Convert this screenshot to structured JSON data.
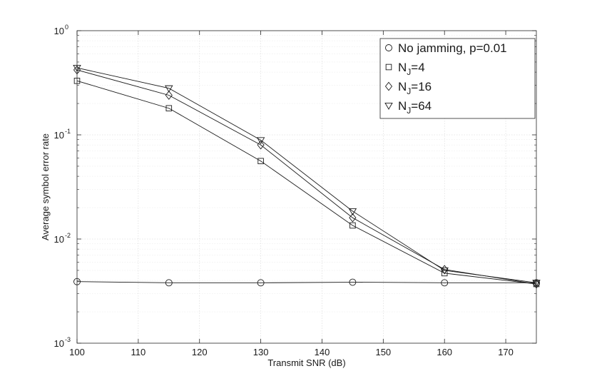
{
  "chart_data": {
    "type": "line",
    "xlabel": "Transmit SNR (dB)",
    "ylabel": "Average symbol error rate",
    "xlim": [
      100,
      175
    ],
    "ylim": [
      0.001,
      1
    ],
    "yscale": "log",
    "grid": true,
    "x_ticks": [
      100,
      110,
      120,
      130,
      140,
      150,
      160,
      170
    ],
    "y_ticks": [
      {
        "value": 0.001,
        "base": "10",
        "exp": "-3"
      },
      {
        "value": 0.01,
        "base": "10",
        "exp": "-2"
      },
      {
        "value": 0.1,
        "base": "10",
        "exp": "-1"
      },
      {
        "value": 1,
        "base": "10",
        "exp": "0"
      }
    ],
    "legend_position": "top-right",
    "x": [
      100,
      115,
      130,
      145,
      160,
      175
    ],
    "series": [
      {
        "legend_main": "No jamming, p=0.01",
        "legend_sub": "",
        "legend_tail": "",
        "marker": "circle",
        "values": [
          0.0039,
          0.0038,
          0.0038,
          0.00385,
          0.0038,
          0.0038
        ]
      },
      {
        "legend_main": "N",
        "legend_sub": "J",
        "legend_tail": "=4",
        "marker": "square",
        "values": [
          0.33,
          0.18,
          0.056,
          0.0135,
          0.0047,
          0.0037
        ]
      },
      {
        "legend_main": "N",
        "legend_sub": "J",
        "legend_tail": "=16",
        "marker": "diamond",
        "values": [
          0.42,
          0.24,
          0.08,
          0.016,
          0.0051,
          0.0037
        ]
      },
      {
        "legend_main": "N",
        "legend_sub": "J",
        "legend_tail": "=64",
        "marker": "triangle-down",
        "values": [
          0.44,
          0.28,
          0.089,
          0.0185,
          0.005,
          0.0038
        ]
      }
    ]
  }
}
